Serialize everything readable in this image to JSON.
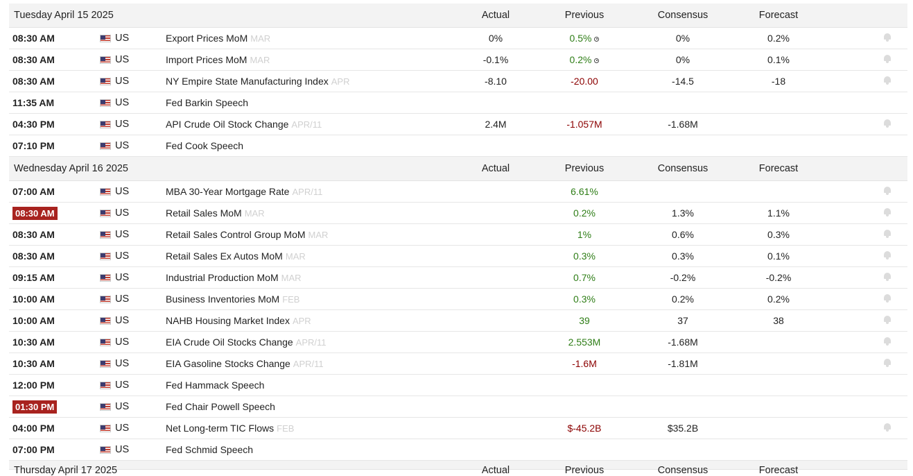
{
  "columns": {
    "actual": "Actual",
    "previous": "Previous",
    "consensus": "Consensus",
    "forecast": "Forecast"
  },
  "days": [
    {
      "date": "Tuesday April 15 2025",
      "events": [
        {
          "time": "08:30 AM",
          "country": "US",
          "event": "Export Prices MoM",
          "period": "MAR",
          "actual": "0%",
          "previous": "0.5%",
          "previous_class": "pos",
          "previous_revised": true,
          "consensus": "0%",
          "forecast": "0.2%",
          "alert": true
        },
        {
          "time": "08:30 AM",
          "country": "US",
          "event": "Import Prices MoM",
          "period": "MAR",
          "actual": "-0.1%",
          "previous": "0.2%",
          "previous_class": "pos",
          "previous_revised": true,
          "consensus": "0%",
          "forecast": "0.1%",
          "alert": true
        },
        {
          "time": "08:30 AM",
          "country": "US",
          "event": "NY Empire State Manufacturing Index",
          "period": "APR",
          "actual": "-8.10",
          "previous": "-20.00",
          "previous_class": "neg",
          "consensus": "-14.5",
          "forecast": "-18",
          "alert": true
        },
        {
          "time": "11:35 AM",
          "country": "US",
          "event": "Fed Barkin Speech",
          "period": "",
          "actual": "",
          "previous": "",
          "consensus": "",
          "forecast": "",
          "alert": false
        },
        {
          "time": "04:30 PM",
          "country": "US",
          "event": "API Crude Oil Stock Change",
          "period": "APR/11",
          "actual": "2.4M",
          "previous": "-1.057M",
          "previous_class": "neg",
          "consensus": "-1.68M",
          "forecast": "",
          "alert": true
        },
        {
          "time": "07:10 PM",
          "country": "US",
          "event": "Fed Cook Speech",
          "period": "",
          "actual": "",
          "previous": "",
          "consensus": "",
          "forecast": "",
          "alert": false
        }
      ]
    },
    {
      "date": "Wednesday April 16 2025",
      "events": [
        {
          "time": "07:00 AM",
          "country": "US",
          "event": "MBA 30-Year Mortgage Rate",
          "period": "APR/11",
          "actual": "",
          "previous": "6.61%",
          "previous_class": "pos",
          "consensus": "",
          "forecast": "",
          "alert": true
        },
        {
          "time": "08:30 AM",
          "time_highlight": true,
          "country": "US",
          "event": "Retail Sales MoM",
          "period": "MAR",
          "actual": "",
          "previous": "0.2%",
          "previous_class": "pos",
          "consensus": "1.3%",
          "forecast": "1.1%",
          "alert": true
        },
        {
          "time": "08:30 AM",
          "country": "US",
          "event": "Retail Sales Control Group MoM",
          "period": "MAR",
          "actual": "",
          "previous": "1%",
          "previous_class": "pos",
          "consensus": "0.6%",
          "forecast": "0.3%",
          "alert": true
        },
        {
          "time": "08:30 AM",
          "country": "US",
          "event": "Retail Sales Ex Autos MoM",
          "period": "MAR",
          "actual": "",
          "previous": "0.3%",
          "previous_class": "pos",
          "consensus": "0.3%",
          "forecast": "0.1%",
          "alert": true
        },
        {
          "time": "09:15 AM",
          "country": "US",
          "event": "Industrial Production MoM",
          "period": "MAR",
          "actual": "",
          "previous": "0.7%",
          "previous_class": "pos",
          "consensus": "-0.2%",
          "forecast": "-0.2%",
          "alert": true
        },
        {
          "time": "10:00 AM",
          "country": "US",
          "event": "Business Inventories MoM",
          "period": "FEB",
          "actual": "",
          "previous": "0.3%",
          "previous_class": "pos",
          "consensus": "0.2%",
          "forecast": "0.2%",
          "alert": true
        },
        {
          "time": "10:00 AM",
          "country": "US",
          "event": "NAHB Housing Market Index",
          "period": "APR",
          "actual": "",
          "previous": "39",
          "previous_class": "pos",
          "consensus": "37",
          "forecast": "38",
          "alert": true
        },
        {
          "time": "10:30 AM",
          "country": "US",
          "event": "EIA Crude Oil Stocks Change",
          "period": "APR/11",
          "actual": "",
          "previous": "2.553M",
          "previous_class": "pos",
          "consensus": "-1.68M",
          "forecast": "",
          "alert": true
        },
        {
          "time": "10:30 AM",
          "country": "US",
          "event": "EIA Gasoline Stocks Change",
          "period": "APR/11",
          "actual": "",
          "previous": "-1.6M",
          "previous_class": "neg",
          "consensus": "-1.81M",
          "forecast": "",
          "alert": true
        },
        {
          "time": "12:00 PM",
          "country": "US",
          "event": "Fed Hammack Speech",
          "period": "",
          "actual": "",
          "previous": "",
          "consensus": "",
          "forecast": "",
          "alert": false
        },
        {
          "time": "01:30 PM",
          "time_highlight": true,
          "country": "US",
          "event": "Fed Chair Powell Speech",
          "period": "",
          "actual": "",
          "previous": "",
          "consensus": "",
          "forecast": "",
          "alert": false
        },
        {
          "time": "04:00 PM",
          "country": "US",
          "event": "Net Long-term TIC Flows",
          "period": "FEB",
          "actual": "",
          "previous": "$-45.2B",
          "previous_class": "neg",
          "consensus": "$35.2B",
          "forecast": "",
          "alert": true
        },
        {
          "time": "07:00 PM",
          "country": "US",
          "event": "Fed Schmid Speech",
          "period": "",
          "actual": "",
          "previous": "",
          "consensus": "",
          "forecast": "",
          "alert": false
        }
      ]
    },
    {
      "date": "Thursday April 17 2025",
      "events": []
    }
  ]
}
